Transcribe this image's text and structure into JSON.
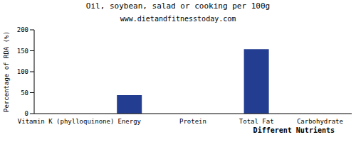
{
  "chart_data": {
    "type": "bar",
    "title": "Oil, soybean, salad or cooking per 100g",
    "subtitle": "www.dietandfitnesstoday.com",
    "x_label": "Different Nutrients",
    "y_label": "Percentage of RDA (%)",
    "categories": [
      "Vitamin K (phylloquinone)",
      "Energy",
      "Protein",
      "Total Fat",
      "Carbohydrate"
    ],
    "values": [
      0,
      44,
      0,
      154,
      0
    ],
    "color": "#233d91",
    "ylim": [
      0,
      200
    ],
    "yticks": [
      0,
      50,
      100,
      150,
      200
    ],
    "grid": false
  }
}
